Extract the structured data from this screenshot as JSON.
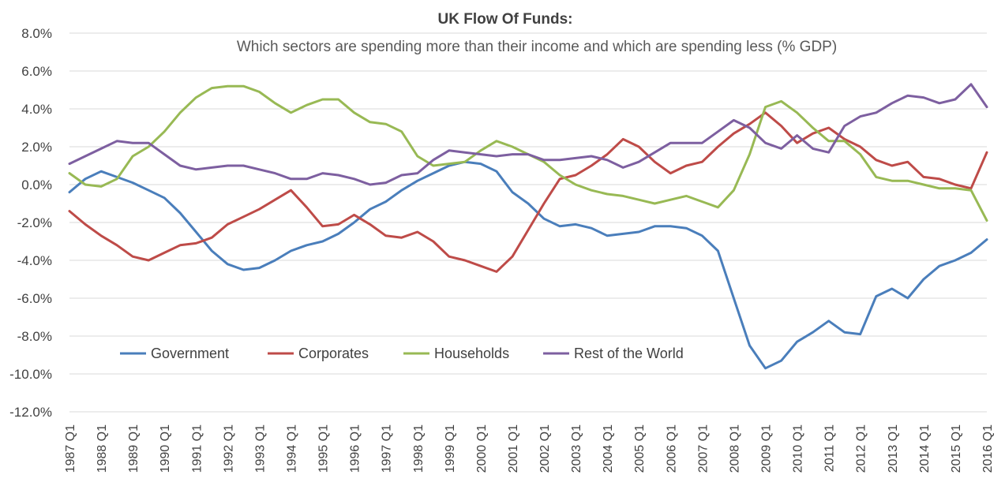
{
  "chart_data": {
    "type": "line",
    "title": "UK Flow Of Funds:",
    "subtitle": "Which sectors are spending more than their income and which are spending less (% GDP)",
    "xlabel": "",
    "ylabel": "",
    "ylim": [
      -12,
      8
    ],
    "y_ticks": [
      8,
      6,
      4,
      2,
      0,
      -2,
      -4,
      -6,
      -8,
      -10,
      -12
    ],
    "y_tick_labels": [
      "8.0%",
      "6.0%",
      "4.0%",
      "2.0%",
      "0.0%",
      "-2.0%",
      "-4.0%",
      "-6.0%",
      "-8.0%",
      "-10.0%",
      "-12.0%"
    ],
    "x_start_year": 1987,
    "x_end_year": 2016,
    "x_tick_labels": [
      "1987 Q1",
      "1988 Q1",
      "1989 Q1",
      "1990 Q1",
      "1991 Q1",
      "1992 Q1",
      "1993 Q1",
      "1994 Q1",
      "1995 Q1",
      "1996 Q1",
      "1997 Q1",
      "1998 Q1",
      "1999 Q1",
      "2000 Q1",
      "2001 Q1",
      "2002 Q1",
      "2003 Q1",
      "2004 Q1",
      "2005 Q1",
      "2006 Q1",
      "2007 Q1",
      "2008 Q1",
      "2009 Q1",
      "2010 Q1",
      "2011 Q1",
      "2012 Q1",
      "2013 Q1",
      "2014 Q1",
      "2015 Q1",
      "2016 Q1"
    ],
    "grid": true,
    "legend_placement": "bottom-left",
    "series": [
      {
        "name": "Government",
        "color": "#4a7ebb",
        "points": [
          [
            1987.0,
            -0.4
          ],
          [
            1987.5,
            0.3
          ],
          [
            1988.0,
            0.7
          ],
          [
            1988.5,
            0.4
          ],
          [
            1989.0,
            0.1
          ],
          [
            1989.5,
            -0.3
          ],
          [
            1990.0,
            -0.7
          ],
          [
            1990.5,
            -1.5
          ],
          [
            1991.0,
            -2.5
          ],
          [
            1991.5,
            -3.5
          ],
          [
            1992.0,
            -4.2
          ],
          [
            1992.5,
            -4.5
          ],
          [
            1993.0,
            -4.4
          ],
          [
            1993.5,
            -4.0
          ],
          [
            1994.0,
            -3.5
          ],
          [
            1994.5,
            -3.2
          ],
          [
            1995.0,
            -3.0
          ],
          [
            1995.5,
            -2.6
          ],
          [
            1996.0,
            -2.0
          ],
          [
            1996.5,
            -1.3
          ],
          [
            1997.0,
            -0.9
          ],
          [
            1997.5,
            -0.3
          ],
          [
            1998.0,
            0.2
          ],
          [
            1998.5,
            0.6
          ],
          [
            1999.0,
            1.0
          ],
          [
            1999.5,
            1.2
          ],
          [
            2000.0,
            1.1
          ],
          [
            2000.5,
            0.7
          ],
          [
            2001.0,
            -0.4
          ],
          [
            2001.5,
            -1.0
          ],
          [
            2002.0,
            -1.8
          ],
          [
            2002.5,
            -2.2
          ],
          [
            2003.0,
            -2.1
          ],
          [
            2003.5,
            -2.3
          ],
          [
            2004.0,
            -2.7
          ],
          [
            2004.5,
            -2.6
          ],
          [
            2005.0,
            -2.5
          ],
          [
            2005.5,
            -2.2
          ],
          [
            2006.0,
            -2.2
          ],
          [
            2006.5,
            -2.3
          ],
          [
            2007.0,
            -2.7
          ],
          [
            2007.5,
            -3.5
          ],
          [
            2008.0,
            -6.0
          ],
          [
            2008.5,
            -8.5
          ],
          [
            2009.0,
            -9.7
          ],
          [
            2009.5,
            -9.3
          ],
          [
            2010.0,
            -8.3
          ],
          [
            2010.5,
            -7.8
          ],
          [
            2011.0,
            -7.2
          ],
          [
            2011.5,
            -7.8
          ],
          [
            2012.0,
            -7.9
          ],
          [
            2012.5,
            -5.9
          ],
          [
            2013.0,
            -5.5
          ],
          [
            2013.5,
            -6.0
          ],
          [
            2014.0,
            -5.0
          ],
          [
            2014.5,
            -4.3
          ],
          [
            2015.0,
            -4.0
          ],
          [
            2015.5,
            -3.6
          ],
          [
            2016.0,
            -2.9
          ]
        ]
      },
      {
        "name": "Corporates",
        "color": "#be4b48",
        "points": [
          [
            1987.0,
            -1.4
          ],
          [
            1987.5,
            -2.1
          ],
          [
            1988.0,
            -2.7
          ],
          [
            1988.5,
            -3.2
          ],
          [
            1989.0,
            -3.8
          ],
          [
            1989.5,
            -4.0
          ],
          [
            1990.0,
            -3.6
          ],
          [
            1990.5,
            -3.2
          ],
          [
            1991.0,
            -3.1
          ],
          [
            1991.5,
            -2.8
          ],
          [
            1992.0,
            -2.1
          ],
          [
            1992.5,
            -1.7
          ],
          [
            1993.0,
            -1.3
          ],
          [
            1993.5,
            -0.8
          ],
          [
            1994.0,
            -0.3
          ],
          [
            1994.5,
            -1.2
          ],
          [
            1995.0,
            -2.2
          ],
          [
            1995.5,
            -2.1
          ],
          [
            1996.0,
            -1.6
          ],
          [
            1996.5,
            -2.1
          ],
          [
            1997.0,
            -2.7
          ],
          [
            1997.5,
            -2.8
          ],
          [
            1998.0,
            -2.5
          ],
          [
            1998.5,
            -3.0
          ],
          [
            1999.0,
            -3.8
          ],
          [
            1999.5,
            -4.0
          ],
          [
            2000.0,
            -4.3
          ],
          [
            2000.5,
            -4.6
          ],
          [
            2001.0,
            -3.8
          ],
          [
            2001.5,
            -2.4
          ],
          [
            2002.0,
            -1.0
          ],
          [
            2002.5,
            0.3
          ],
          [
            2003.0,
            0.5
          ],
          [
            2003.5,
            1.0
          ],
          [
            2004.0,
            1.6
          ],
          [
            2004.5,
            2.4
          ],
          [
            2005.0,
            2.0
          ],
          [
            2005.5,
            1.2
          ],
          [
            2006.0,
            0.6
          ],
          [
            2006.5,
            1.0
          ],
          [
            2007.0,
            1.2
          ],
          [
            2007.5,
            2.0
          ],
          [
            2008.0,
            2.7
          ],
          [
            2008.5,
            3.2
          ],
          [
            2009.0,
            3.8
          ],
          [
            2009.5,
            3.1
          ],
          [
            2010.0,
            2.2
          ],
          [
            2010.5,
            2.7
          ],
          [
            2011.0,
            3.0
          ],
          [
            2011.5,
            2.4
          ],
          [
            2012.0,
            2.0
          ],
          [
            2012.5,
            1.3
          ],
          [
            2013.0,
            1.0
          ],
          [
            2013.5,
            1.2
          ],
          [
            2014.0,
            0.4
          ],
          [
            2014.5,
            0.3
          ],
          [
            2015.0,
            0.0
          ],
          [
            2015.5,
            -0.2
          ],
          [
            2016.0,
            1.7
          ]
        ]
      },
      {
        "name": "Households",
        "color": "#98b954",
        "points": [
          [
            1987.0,
            0.6
          ],
          [
            1987.5,
            0.0
          ],
          [
            1988.0,
            -0.1
          ],
          [
            1988.5,
            0.3
          ],
          [
            1989.0,
            1.5
          ],
          [
            1989.5,
            2.0
          ],
          [
            1990.0,
            2.8
          ],
          [
            1990.5,
            3.8
          ],
          [
            1991.0,
            4.6
          ],
          [
            1991.5,
            5.1
          ],
          [
            1992.0,
            5.2
          ],
          [
            1992.5,
            5.2
          ],
          [
            1993.0,
            4.9
          ],
          [
            1993.5,
            4.3
          ],
          [
            1994.0,
            3.8
          ],
          [
            1994.5,
            4.2
          ],
          [
            1995.0,
            4.5
          ],
          [
            1995.5,
            4.5
          ],
          [
            1996.0,
            3.8
          ],
          [
            1996.5,
            3.3
          ],
          [
            1997.0,
            3.2
          ],
          [
            1997.5,
            2.8
          ],
          [
            1998.0,
            1.5
          ],
          [
            1998.5,
            1.0
          ],
          [
            1999.0,
            1.1
          ],
          [
            1999.5,
            1.2
          ],
          [
            2000.0,
            1.8
          ],
          [
            2000.5,
            2.3
          ],
          [
            2001.0,
            2.0
          ],
          [
            2001.5,
            1.6
          ],
          [
            2002.0,
            1.2
          ],
          [
            2002.5,
            0.5
          ],
          [
            2003.0,
            0.0
          ],
          [
            2003.5,
            -0.3
          ],
          [
            2004.0,
            -0.5
          ],
          [
            2004.5,
            -0.6
          ],
          [
            2005.0,
            -0.8
          ],
          [
            2005.5,
            -1.0
          ],
          [
            2006.0,
            -0.8
          ],
          [
            2006.5,
            -0.6
          ],
          [
            2007.0,
            -0.9
          ],
          [
            2007.5,
            -1.2
          ],
          [
            2008.0,
            -0.3
          ],
          [
            2008.5,
            1.6
          ],
          [
            2009.0,
            4.1
          ],
          [
            2009.5,
            4.4
          ],
          [
            2010.0,
            3.8
          ],
          [
            2010.5,
            3.0
          ],
          [
            2011.0,
            2.3
          ],
          [
            2011.5,
            2.3
          ],
          [
            2012.0,
            1.6
          ],
          [
            2012.5,
            0.4
          ],
          [
            2013.0,
            0.2
          ],
          [
            2013.5,
            0.2
          ],
          [
            2014.0,
            0.0
          ],
          [
            2014.5,
            -0.2
          ],
          [
            2015.0,
            -0.2
          ],
          [
            2015.5,
            -0.3
          ],
          [
            2016.0,
            -1.9
          ]
        ]
      },
      {
        "name": "Rest of the World",
        "color": "#7d5fa0",
        "points": [
          [
            1987.0,
            1.1
          ],
          [
            1987.5,
            1.5
          ],
          [
            1988.0,
            1.9
          ],
          [
            1988.5,
            2.3
          ],
          [
            1989.0,
            2.2
          ],
          [
            1989.5,
            2.2
          ],
          [
            1990.0,
            1.6
          ],
          [
            1990.5,
            1.0
          ],
          [
            1991.0,
            0.8
          ],
          [
            1991.5,
            0.9
          ],
          [
            1992.0,
            1.0
          ],
          [
            1992.5,
            1.0
          ],
          [
            1993.0,
            0.8
          ],
          [
            1993.5,
            0.6
          ],
          [
            1994.0,
            0.3
          ],
          [
            1994.5,
            0.3
          ],
          [
            1995.0,
            0.6
          ],
          [
            1995.5,
            0.5
          ],
          [
            1996.0,
            0.3
          ],
          [
            1996.5,
            0.0
          ],
          [
            1997.0,
            0.1
          ],
          [
            1997.5,
            0.5
          ],
          [
            1998.0,
            0.6
          ],
          [
            1998.5,
            1.3
          ],
          [
            1999.0,
            1.8
          ],
          [
            1999.5,
            1.7
          ],
          [
            2000.0,
            1.6
          ],
          [
            2000.5,
            1.5
          ],
          [
            2001.0,
            1.6
          ],
          [
            2001.5,
            1.6
          ],
          [
            2002.0,
            1.3
          ],
          [
            2002.5,
            1.3
          ],
          [
            2003.0,
            1.4
          ],
          [
            2003.5,
            1.5
          ],
          [
            2004.0,
            1.3
          ],
          [
            2004.5,
            0.9
          ],
          [
            2005.0,
            1.2
          ],
          [
            2005.5,
            1.7
          ],
          [
            2006.0,
            2.2
          ],
          [
            2006.5,
            2.2
          ],
          [
            2007.0,
            2.2
          ],
          [
            2007.5,
            2.8
          ],
          [
            2008.0,
            3.4
          ],
          [
            2008.5,
            3.0
          ],
          [
            2009.0,
            2.2
          ],
          [
            2009.5,
            1.9
          ],
          [
            2010.0,
            2.6
          ],
          [
            2010.5,
            1.9
          ],
          [
            2011.0,
            1.7
          ],
          [
            2011.5,
            3.1
          ],
          [
            2012.0,
            3.6
          ],
          [
            2012.5,
            3.8
          ],
          [
            2013.0,
            4.3
          ],
          [
            2013.5,
            4.7
          ],
          [
            2014.0,
            4.6
          ],
          [
            2014.5,
            4.3
          ],
          [
            2015.0,
            4.5
          ],
          [
            2015.5,
            5.3
          ],
          [
            2016.0,
            4.1
          ]
        ]
      }
    ]
  }
}
